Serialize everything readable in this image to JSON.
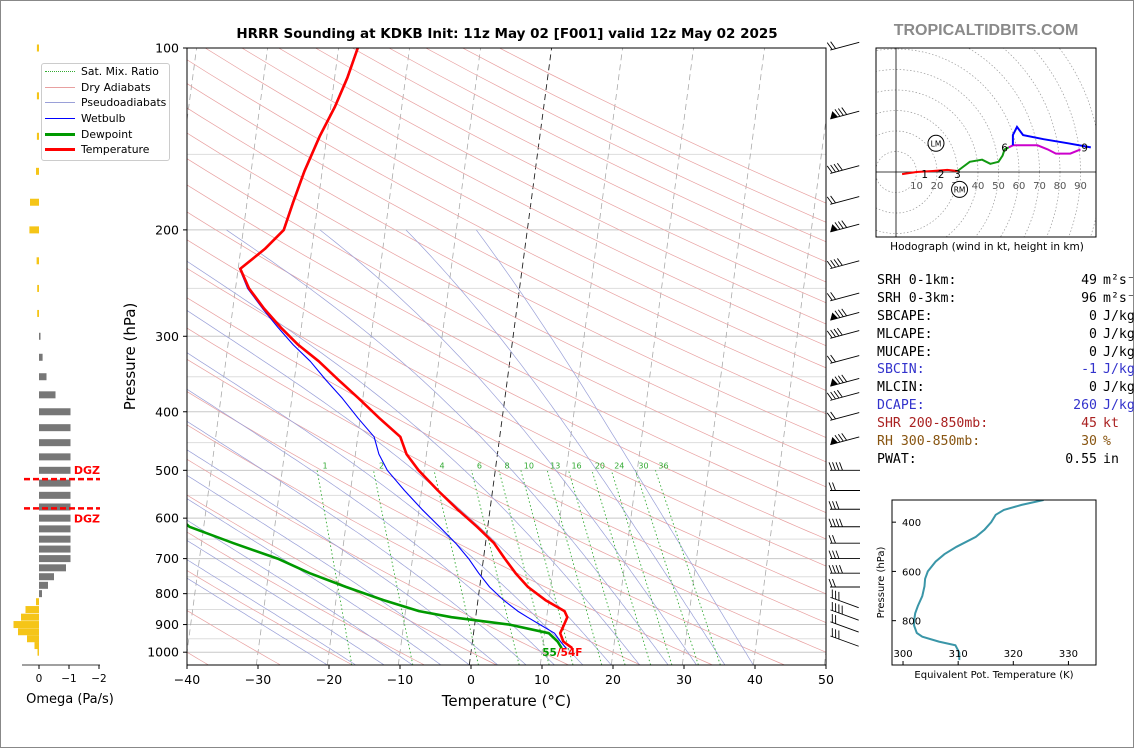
{
  "title": "HRRR Sounding at KDKB Init: 11z May 02 [F001] valid 12z May 02 2025",
  "brand": "TROPICALTIDBITS.COM",
  "colors": {
    "temperature": "#ff0000",
    "dewpoint": "#009900",
    "wetbulb": "#0000ff",
    "dry_adiabat": "#e8a0a0",
    "moist_adiabat": "#9aa0d8",
    "mixing_ratio": "#33aa33",
    "hodo_low": "#ff0000",
    "hodo_mid": "#119911",
    "hodo_high": "#cc00cc",
    "hodo_top": "#0000ff",
    "theta_e": "#3a96a8",
    "omega_up": "#f5c518",
    "omega_down": "#777777",
    "dgz": "#ff0000"
  },
  "legend": [
    {
      "label": "Sat. Mix. Ratio",
      "style": "dotted",
      "color": "#33aa33"
    },
    {
      "label": "Dry Adiabats",
      "style": "solid-thin",
      "color": "#e8a0a0"
    },
    {
      "label": "Pseudoadiabats",
      "style": "solid-thin",
      "color": "#9aa0d8"
    },
    {
      "label": "Wetbulb",
      "style": "solid",
      "color": "#0000ff"
    },
    {
      "label": "Dewpoint",
      "style": "thick",
      "color": "#009900"
    },
    {
      "label": "Temperature",
      "style": "thick",
      "color": "#ff0000"
    }
  ],
  "hodograph_caption": "Hodograph (wind in kt, height in km)",
  "indices": [
    {
      "label": "SRH 0-1km:",
      "value": "49",
      "unit": "m²s⁻²",
      "color": "#000000"
    },
    {
      "label": "SRH 0-3km:",
      "value": "96",
      "unit": "m²s⁻²",
      "color": "#000000"
    },
    {
      "label": "SBCAPE:",
      "value": "0",
      "unit": "J/kg",
      "color": "#000000"
    },
    {
      "label": "MLCAPE:",
      "value": "0",
      "unit": "J/kg",
      "color": "#000000"
    },
    {
      "label": "MUCAPE:",
      "value": "0",
      "unit": "J/kg",
      "color": "#000000"
    },
    {
      "label": "SBCIN:",
      "value": "-1",
      "unit": "J/kg",
      "color": "#3333cc"
    },
    {
      "label": "MLCIN:",
      "value": "0",
      "unit": "J/kg",
      "color": "#000000"
    },
    {
      "label": "DCAPE:",
      "value": "260",
      "unit": "J/kg",
      "color": "#3333cc"
    },
    {
      "label": "SHR 200-850mb:",
      "value": "45",
      "unit": "kt",
      "color": "#aa2222"
    },
    {
      "label": "RH 300-850mb:",
      "value": "30",
      "unit": "%",
      "color": "#885511"
    },
    {
      "label": "PWAT:",
      "value": "0.55",
      "unit": "in",
      "color": "#000000"
    }
  ],
  "chart_data": [
    {
      "type": "line",
      "name": "skew-t",
      "xlabel": "Temperature (°C)",
      "ylabel": "Pressure (hPa)",
      "xlim": [
        -40,
        50
      ],
      "ylim": [
        1050,
        100
      ],
      "y_scale": "log",
      "x_ticks": [
        -40,
        -30,
        -20,
        -10,
        0,
        10,
        20,
        30,
        40,
        50
      ],
      "y_ticks": [
        100,
        200,
        300,
        400,
        500,
        600,
        700,
        800,
        900,
        1000
      ],
      "grid": true,
      "legend_position": "top-left",
      "mixing_ratio_labels": [
        "1",
        "2",
        "4",
        "6",
        "8",
        "10",
        "13",
        "16",
        "20",
        "24",
        "30",
        "36"
      ],
      "mixing_ratio_values": [
        1,
        2,
        4,
        6,
        8,
        10,
        13,
        16,
        20,
        24,
        30,
        36
      ],
      "surface_label": "55/54F",
      "series": [
        {
          "name": "Temperature",
          "points": [
            [
              985,
              14.2
            ],
            [
              960,
              12.8
            ],
            [
              930,
              12.2
            ],
            [
              900,
              12.6
            ],
            [
              875,
              12.9
            ],
            [
              855,
              12.4
            ],
            [
              820,
              9.5
            ],
            [
              780,
              6.8
            ],
            [
              740,
              4.8
            ],
            [
              700,
              3.0
            ],
            [
              660,
              1.2
            ],
            [
              620,
              -1.5
            ],
            [
              580,
              -4.6
            ],
            [
              540,
              -7.7
            ],
            [
              500,
              -10.8
            ],
            [
              470,
              -12.8
            ],
            [
              440,
              -14.0
            ],
            [
              410,
              -17.3
            ],
            [
              380,
              -20.6
            ],
            [
              355,
              -23.7
            ],
            [
              330,
              -26.9
            ],
            [
              310,
              -30.1
            ],
            [
              290,
              -32.9
            ],
            [
              270,
              -35.6
            ],
            [
              250,
              -38.1
            ],
            [
              232,
              -39.7
            ],
            [
              215,
              -36.6
            ],
            [
              200,
              -34.3
            ],
            [
              180,
              -33.5
            ],
            [
              160,
              -32.5
            ],
            [
              140,
              -31.0
            ],
            [
              125,
              -29.4
            ],
            [
              112,
              -28.2
            ],
            [
              100,
              -27.3
            ]
          ]
        },
        {
          "name": "Dewpoint",
          "points": [
            [
              985,
              12.7
            ],
            [
              960,
              12.0
            ],
            [
              930,
              10.6
            ],
            [
              900,
              4.9
            ],
            [
              875,
              -3.4
            ],
            [
              855,
              -8.1
            ],
            [
              820,
              -13.3
            ],
            [
              780,
              -18.8
            ],
            [
              740,
              -24.2
            ],
            [
              700,
              -29.0
            ],
            [
              660,
              -35.5
            ],
            [
              620,
              -42.0
            ],
            [
              580,
              -45.1
            ],
            [
              540,
              -45.6
            ],
            [
              500,
              -45.5
            ],
            [
              460,
              -45.6
            ],
            [
              420,
              -45.9
            ],
            [
              380,
              -46.6
            ],
            [
              350,
              -49.6
            ],
            [
              320,
              -56.3
            ],
            [
              300,
              -59.0
            ],
            [
              280,
              -58.1
            ],
            [
              260,
              -60.3
            ],
            [
              240,
              -62.0
            ],
            [
              220,
              -65.5
            ],
            [
              200,
              -69.8
            ],
            [
              180,
              -71.4
            ],
            [
              160,
              -73.1
            ],
            [
              140,
              -74.1
            ],
            [
              125,
              -73.0
            ],
            [
              112,
              -70.9
            ],
            [
              100,
              -69.0
            ]
          ]
        },
        {
          "name": "Wetbulb",
          "points": [
            [
              985,
              13.3
            ],
            [
              960,
              12.4
            ],
            [
              930,
              11.4
            ],
            [
              900,
              9.2
            ],
            [
              875,
              7.3
            ],
            [
              855,
              5.8
            ],
            [
              820,
              3.6
            ],
            [
              780,
              1.4
            ],
            [
              740,
              -0.4
            ],
            [
              700,
              -2.1
            ],
            [
              660,
              -4.2
            ],
            [
              620,
              -6.8
            ],
            [
              580,
              -9.6
            ],
            [
              540,
              -12.4
            ],
            [
              500,
              -15.2
            ],
            [
              470,
              -16.7
            ],
            [
              440,
              -17.7
            ],
            [
              410,
              -20.3
            ],
            [
              380,
              -22.9
            ],
            [
              355,
              -25.5
            ],
            [
              330,
              -28.1
            ],
            [
              310,
              -30.8
            ],
            [
              290,
              -33.3
            ],
            [
              270,
              -35.8
            ],
            [
              250,
              -38.3
            ],
            [
              232,
              -39.8
            ],
            [
              215,
              -36.7
            ],
            [
              200,
              -34.4
            ],
            [
              180,
              -33.6
            ],
            [
              160,
              -32.6
            ],
            [
              140,
              -31.1
            ],
            [
              125,
              -29.5
            ],
            [
              112,
              -28.3
            ],
            [
              100,
              -27.4
            ]
          ]
        }
      ]
    },
    {
      "type": "line",
      "name": "hodograph",
      "xlim": [
        0,
        100
      ],
      "x_ticks": [
        10,
        20,
        30,
        40,
        50,
        60,
        70,
        80,
        90
      ],
      "height_labels": [
        "1",
        "2",
        "3",
        "6",
        "9"
      ],
      "markers": [
        "LM",
        "RM"
      ],
      "series": [
        {
          "name": "0-3km",
          "points": [
            [
              3,
              -1
            ],
            [
              10,
              0
            ],
            [
              18,
              0.5
            ],
            [
              25,
              1
            ],
            [
              30,
              0.5
            ]
          ]
        },
        {
          "name": "3-6km",
          "points": [
            [
              30,
              0.5
            ],
            [
              36,
              5
            ],
            [
              42,
              6
            ],
            [
              46,
              4
            ],
            [
              50,
              5
            ],
            [
              52,
              8
            ],
            [
              53,
              11
            ],
            [
              55,
              12
            ]
          ]
        },
        {
          "name": "6-9km",
          "points": [
            [
              55,
              12
            ],
            [
              57,
              13
            ],
            [
              63,
              13
            ],
            [
              69,
              13
            ],
            [
              74,
              11
            ],
            [
              78,
              9
            ],
            [
              85,
              9
            ],
            [
              90,
              11
            ]
          ]
        },
        {
          "name": "9km+",
          "points": [
            [
              57,
              13
            ],
            [
              57,
              18
            ],
            [
              59,
              22
            ],
            [
              62,
              18
            ],
            [
              72,
              16
            ],
            [
              84,
              14
            ],
            [
              95,
              12
            ]
          ]
        }
      ]
    },
    {
      "type": "line",
      "name": "theta-e",
      "xlabel": "Equivalent Pot. Temperature (K)",
      "ylabel": "Pressure (hPa)",
      "xlim": [
        298,
        335
      ],
      "ylim": [
        980,
        310
      ],
      "x_ticks": [
        300,
        310,
        320,
        330
      ],
      "y_ticks": [
        400,
        600,
        800
      ],
      "series": [
        {
          "name": "Theta-E",
          "points": [
            [
              960,
              310.2
            ],
            [
              930,
              310.2
            ],
            [
              900,
              309.5
            ],
            [
              885,
              306.5
            ],
            [
              865,
              303.5
            ],
            [
              850,
              302.5
            ],
            [
              820,
              302.0
            ],
            [
              800,
              302.0
            ],
            [
              770,
              302.2
            ],
            [
              740,
              302.7
            ],
            [
              700,
              303.5
            ],
            [
              660,
              303.9
            ],
            [
              630,
              304.0
            ],
            [
              600,
              304.5
            ],
            [
              560,
              305.9
            ],
            [
              530,
              307.5
            ],
            [
              500,
              309.7
            ],
            [
              460,
              313.2
            ],
            [
              430,
              314.8
            ],
            [
              400,
              316.0
            ],
            [
              370,
              316.8
            ],
            [
              350,
              318.3
            ],
            [
              330,
              321.5
            ],
            [
              310,
              325.5
            ]
          ]
        }
      ]
    },
    {
      "type": "bar",
      "name": "omega",
      "xlabel": "Omega (Pa/s)",
      "xlim": [
        0.25,
        -2.1
      ],
      "x_ticks": [
        0,
        -1,
        -2
      ],
      "dgz_label": "DGZ",
      "dgz_top": 517,
      "dgz_bottom": 578,
      "levels": [
        100,
        120,
        140,
        160,
        180,
        200,
        225,
        250,
        275,
        300,
        325,
        350,
        375,
        400,
        425,
        450,
        475,
        500,
        525,
        550,
        575,
        600,
        625,
        650,
        675,
        700,
        725,
        750,
        775,
        800,
        825,
        850,
        875,
        900,
        925,
        950,
        975,
        1000
      ],
      "values": [
        0.07,
        0.07,
        0.07,
        0.1,
        0.3,
        0.32,
        0.08,
        0.06,
        0.06,
        -0.05,
        -0.12,
        -0.25,
        -0.55,
        -1.05,
        -1.05,
        -1.05,
        -1.05,
        -1.05,
        -1.05,
        -1.05,
        -1.05,
        -1.05,
        -1.05,
        -1.05,
        -1.05,
        -1.05,
        -0.9,
        -0.5,
        -0.3,
        -0.1,
        0.1,
        0.45,
        0.6,
        0.85,
        0.7,
        0.4,
        0.15,
        0.05
      ]
    }
  ]
}
